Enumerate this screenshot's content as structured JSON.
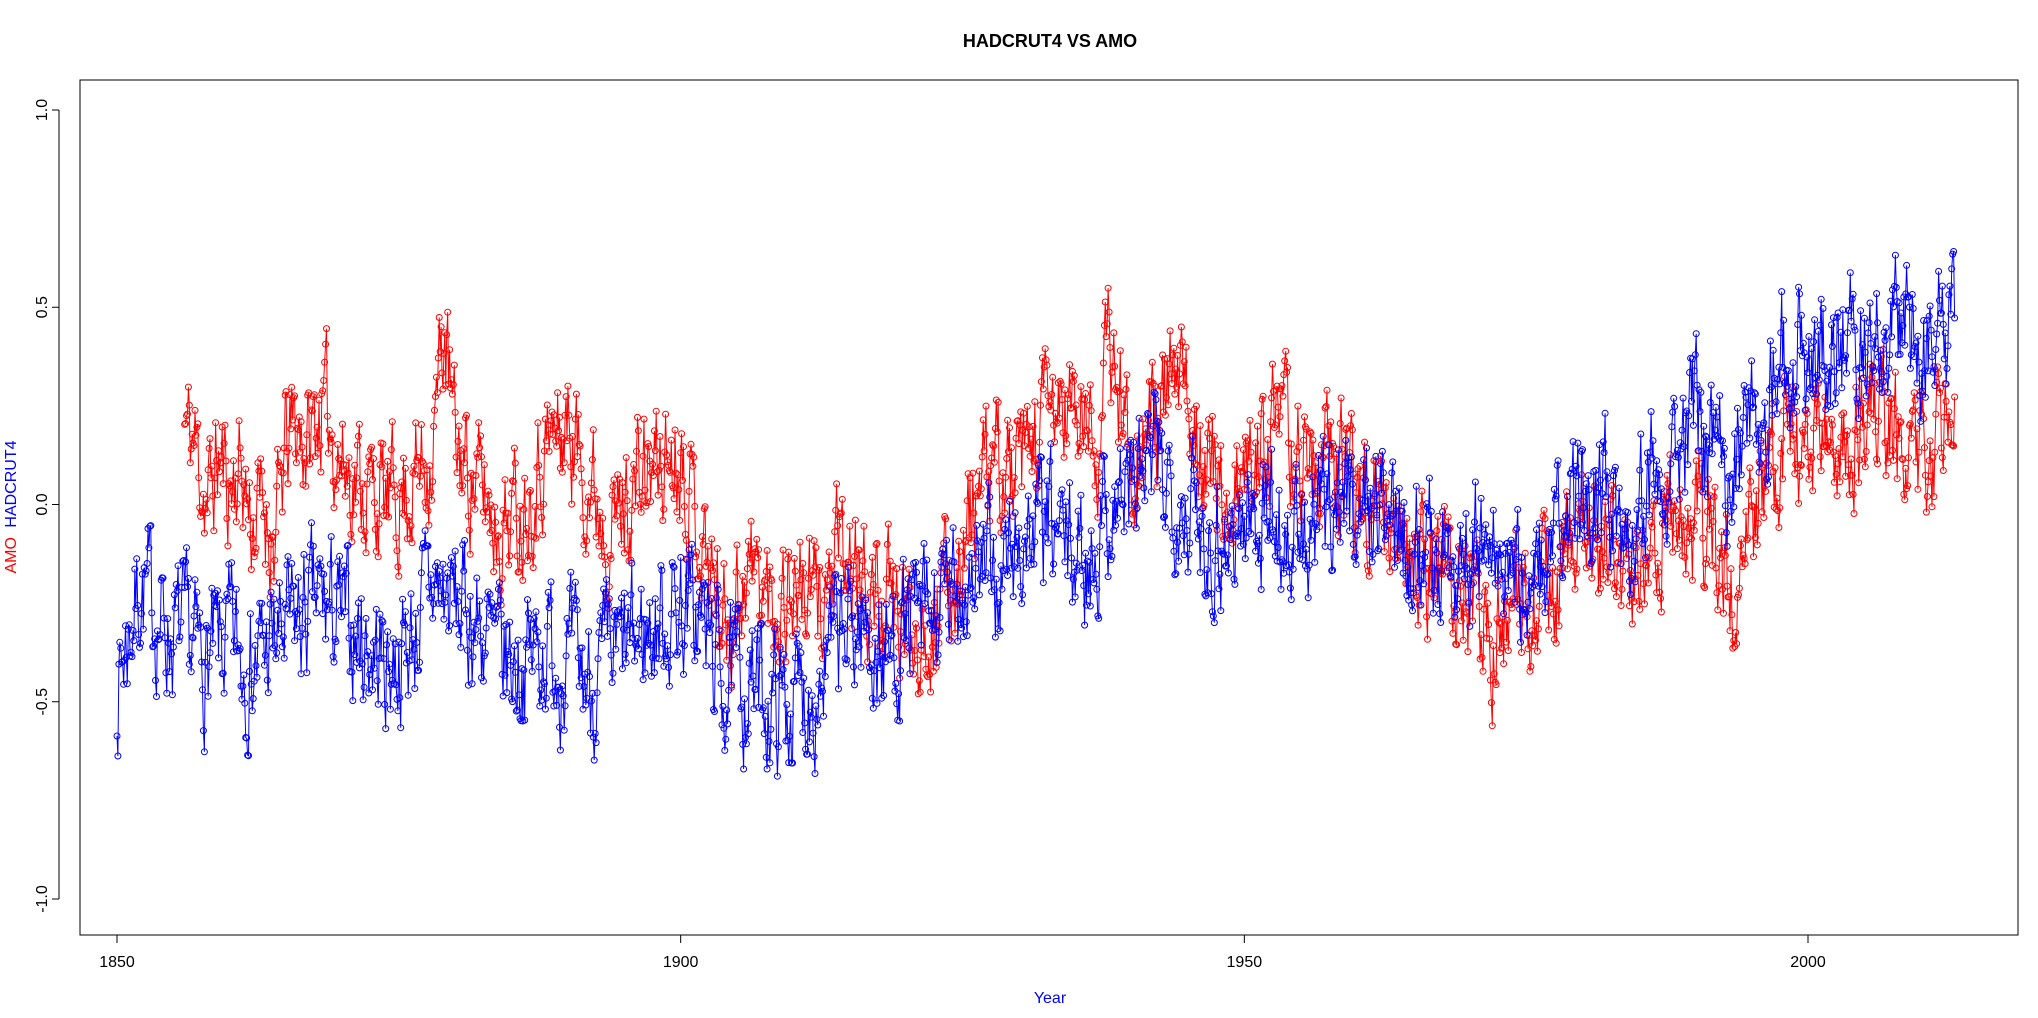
{
  "chart_data": {
    "type": "line",
    "title": "HADCRUT4 VS AMO",
    "xlabel": "Year",
    "ylabel_parts": [
      "AMO",
      "HADCRUT4"
    ],
    "xlim": [
      1850,
      2013
    ],
    "ylim": [
      -1.0,
      1.0
    ],
    "x_ticks": [
      1850,
      1900,
      1950,
      2000
    ],
    "y_ticks": [
      -1.0,
      -0.5,
      0.0,
      0.5,
      1.0
    ],
    "y_tick_labels": [
      "-1.0",
      "-0.5",
      "0.0",
      "0.5",
      "1.0"
    ],
    "markers": "open-circle",
    "series": [
      {
        "name": "AMO",
        "color": "#ff0000",
        "monthly": true,
        "x_start": 1856,
        "x_end": 2013,
        "knots_x": [
          1856,
          1857,
          1858,
          1859,
          1860,
          1861,
          1862,
          1863,
          1864,
          1865,
          1866,
          1867,
          1868,
          1869,
          1870,
          1872,
          1874,
          1876,
          1878,
          1879,
          1880,
          1882,
          1884,
          1886,
          1888,
          1890,
          1892,
          1894,
          1896,
          1898,
          1900,
          1902,
          1904,
          1906,
          1908,
          1910,
          1912,
          1914,
          1916,
          1918,
          1920,
          1922,
          1924,
          1926,
          1928,
          1930,
          1932,
          1934,
          1936,
          1937,
          1938,
          1940,
          1942,
          1944,
          1946,
          1948,
          1950,
          1952,
          1954,
          1956,
          1958,
          1960,
          1962,
          1964,
          1966,
          1968,
          1970,
          1972,
          1974,
          1976,
          1978,
          1980,
          1982,
          1984,
          1986,
          1988,
          1990,
          1992,
          1994,
          1996,
          1998,
          2000,
          2002,
          2004,
          2006,
          2008,
          2010,
          2012,
          2013
        ],
        "knots_y": [
          0.2,
          0.15,
          0.0,
          0.12,
          0.05,
          0.1,
          -0.05,
          0.0,
          -0.1,
          0.15,
          0.2,
          0.15,
          0.25,
          0.2,
          0.1,
          0.05,
          0.0,
          0.05,
          0.15,
          0.45,
          0.15,
          0.05,
          -0.05,
          0.0,
          0.15,
          0.2,
          0.05,
          -0.05,
          0.05,
          0.1,
          0.15,
          -0.1,
          -0.3,
          -0.15,
          -0.25,
          -0.2,
          -0.25,
          -0.15,
          -0.2,
          -0.25,
          -0.3,
          -0.3,
          -0.2,
          0.0,
          0.1,
          0.05,
          0.2,
          0.25,
          0.2,
          0.15,
          0.4,
          0.15,
          0.2,
          0.3,
          0.2,
          0.0,
          0.05,
          0.2,
          0.15,
          0.1,
          0.1,
          0.05,
          0.0,
          -0.1,
          -0.15,
          -0.15,
          -0.25,
          -0.35,
          -0.3,
          -0.25,
          -0.2,
          -0.05,
          -0.1,
          -0.2,
          -0.1,
          0.0,
          -0.05,
          -0.15,
          -0.2,
          0.05,
          0.2,
          0.1,
          0.2,
          0.15,
          0.25,
          0.2,
          0.1,
          0.2,
          0.2
        ],
        "noise": 0.13,
        "seed": 11
      },
      {
        "name": "HADCRUT4",
        "color": "#0000ff",
        "monthly": true,
        "x_start": 1850,
        "x_end": 2013,
        "knots_x": [
          1850,
          1852,
          1854,
          1856,
          1858,
          1860,
          1862,
          1864,
          1866,
          1868,
          1870,
          1872,
          1874,
          1876,
          1878,
          1880,
          1882,
          1884,
          1886,
          1888,
          1890,
          1892,
          1894,
          1896,
          1898,
          1900,
          1902,
          1904,
          1906,
          1908,
          1910,
          1912,
          1914,
          1916,
          1918,
          1920,
          1922,
          1924,
          1926,
          1928,
          1930,
          1932,
          1934,
          1936,
          1938,
          1940,
          1942,
          1944,
          1946,
          1948,
          1950,
          1952,
          1954,
          1956,
          1958,
          1960,
          1962,
          1964,
          1966,
          1968,
          1970,
          1972,
          1974,
          1976,
          1978,
          1980,
          1982,
          1984,
          1986,
          1988,
          1990,
          1992,
          1994,
          1996,
          1998,
          2000,
          2002,
          2004,
          2006,
          2008,
          2010,
          2012,
          2013
        ],
        "knots_y": [
          -0.45,
          -0.2,
          -0.3,
          -0.35,
          -0.4,
          -0.35,
          -0.4,
          -0.35,
          -0.3,
          -0.25,
          -0.3,
          -0.35,
          -0.4,
          -0.35,
          -0.2,
          -0.25,
          -0.3,
          -0.4,
          -0.4,
          -0.35,
          -0.4,
          -0.45,
          -0.4,
          -0.35,
          -0.3,
          -0.25,
          -0.3,
          -0.45,
          -0.45,
          -0.5,
          -0.5,
          -0.45,
          -0.35,
          -0.3,
          -0.4,
          -0.3,
          -0.3,
          -0.25,
          -0.15,
          -0.2,
          -0.1,
          -0.05,
          -0.1,
          -0.15,
          0.0,
          0.05,
          0.1,
          0.05,
          -0.05,
          -0.1,
          -0.05,
          0.0,
          -0.1,
          -0.1,
          0.05,
          0.0,
          0.0,
          -0.05,
          -0.1,
          -0.15,
          -0.1,
          -0.15,
          -0.2,
          -0.15,
          -0.1,
          0.05,
          0.05,
          -0.05,
          0.1,
          0.15,
          0.2,
          0.1,
          0.15,
          0.25,
          0.4,
          0.35,
          0.4,
          0.45,
          0.45,
          0.45,
          0.4,
          0.45,
          0.45
        ],
        "noise": 0.14,
        "seed": 7
      }
    ]
  }
}
